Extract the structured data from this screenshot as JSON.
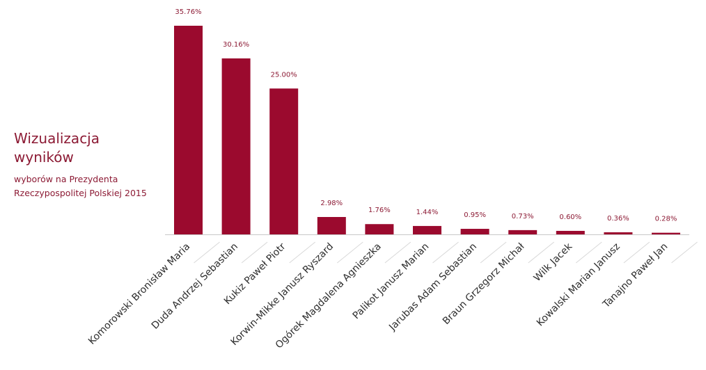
{
  "title": {
    "main": "Wizualizacja wyników",
    "sub": "wyborów na Prezydenta Rzeczypospolitej Polskiej 2015"
  },
  "colors": {
    "bar": "#9b0a2e",
    "value_label": "#8c1a34",
    "axis": "#c8c8c8",
    "tick_line": "#d8d8d8"
  },
  "chart_data": {
    "type": "bar",
    "categories": [
      "Komorowski Bronisław Maria",
      "Duda Andrzej Sebastian",
      "Kukiz Paweł Piotr",
      "Korwin-Mikke Janusz Ryszard",
      "Ogórek Magdalena Agnieszka",
      "Palikot Janusz Marian",
      "Jarubas Adam Sebastian",
      "Braun Grzegorz Michał",
      "Wilk Jacek",
      "Kowalski Marian Janusz",
      "Tanajno Paweł Jan"
    ],
    "values": [
      35.76,
      30.16,
      25.0,
      2.98,
      1.76,
      1.44,
      0.95,
      0.73,
      0.6,
      0.36,
      0.28
    ],
    "value_labels": [
      "35.76%",
      "30.16%",
      "25.00%",
      "2.98%",
      "1.76%",
      "1.44%",
      "0.95%",
      "0.73%",
      "0.60%",
      "0.36%",
      "0.28%"
    ],
    "title": "",
    "xlabel": "",
    "ylabel": "",
    "ylim": [
      0,
      35.76
    ],
    "grid": false,
    "legend": "none"
  }
}
